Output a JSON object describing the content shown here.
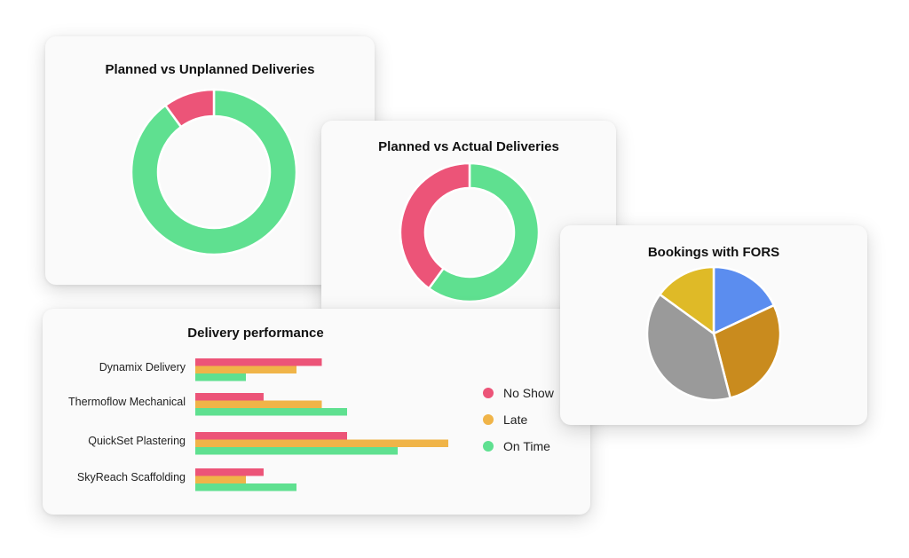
{
  "colors": {
    "red": "#ec5478",
    "green": "#5fe090",
    "orange": "#f0b448",
    "blue": "#5b8def",
    "amber": "#c98b1e",
    "grey": "#9a9a9a",
    "yellow": "#dfba27"
  },
  "chart_data": [
    {
      "id": "unplanned",
      "type": "pie",
      "donut": true,
      "title": "Planned vs Unplanned Deliveries",
      "slices": [
        {
          "value": 0.9,
          "color": "#5fe090"
        },
        {
          "value": 0.1,
          "color": "#ec5478"
        }
      ]
    },
    {
      "id": "actual",
      "type": "pie",
      "donut": true,
      "title": "Planned vs Actual Deliveries",
      "slices": [
        {
          "value": 0.6,
          "color": "#5fe090"
        },
        {
          "value": 0.4,
          "color": "#ec5478"
        }
      ]
    },
    {
      "id": "perf",
      "type": "bar",
      "orientation": "horizontal",
      "title": "Delivery performance",
      "categories": [
        "Dynamix Delivery",
        "Thermoflow Mechanical",
        "QuickSet Plastering",
        "SkyReach Scaffolding"
      ],
      "xlim": [
        0,
        10
      ],
      "series": [
        {
          "name": "No Show",
          "color": "#ec5478",
          "values": [
            5,
            2.7,
            6,
            2.7
          ]
        },
        {
          "name": "Late",
          "color": "#f0b448",
          "values": [
            4,
            5,
            10,
            2
          ]
        },
        {
          "name": "On Time",
          "color": "#5fe090",
          "values": [
            2,
            6,
            8,
            4
          ]
        }
      ],
      "legend_position": "right"
    },
    {
      "id": "fors",
      "type": "pie",
      "donut": false,
      "title": "Bookings with FORS",
      "slices": [
        {
          "value": 0.18,
          "color": "#5b8def"
        },
        {
          "value": 0.28,
          "color": "#c98b1e"
        },
        {
          "value": 0.39,
          "color": "#9a9a9a"
        },
        {
          "value": 0.15,
          "color": "#dfba27"
        }
      ]
    }
  ]
}
